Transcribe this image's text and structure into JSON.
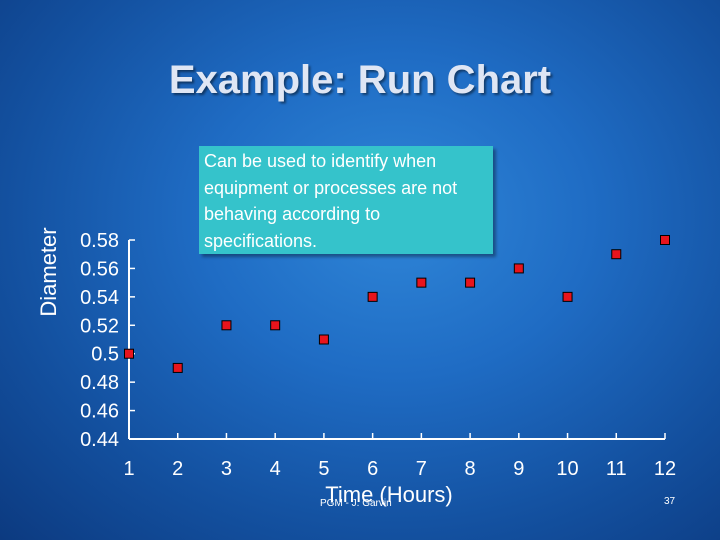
{
  "slide": {
    "title": "Example: Run Chart",
    "callout": "Can be used to identify when equipment or processes are not behaving according to specifications.",
    "footer_left": "PGM - J. Garvin",
    "page_number": "37"
  },
  "colors": {
    "background": "#1f6cc4",
    "callout": "#35c3cb",
    "marker_fill": "#e8141c",
    "marker_stroke": "#000000",
    "axis": "#ffffff"
  },
  "chart_data": {
    "type": "scatter",
    "xlabel": "Time (Hours)",
    "ylabel": "Diameter",
    "x": [
      1,
      2,
      3,
      4,
      5,
      6,
      7,
      8,
      9,
      10,
      11,
      12
    ],
    "y": [
      0.5,
      0.49,
      0.52,
      0.52,
      0.51,
      0.54,
      0.55,
      0.55,
      0.56,
      0.54,
      0.57,
      0.58
    ],
    "x_ticks": [
      1,
      2,
      3,
      4,
      5,
      6,
      7,
      8,
      9,
      10,
      11,
      12
    ],
    "y_ticks": [
      "0.44",
      "0.46",
      "0.48",
      "0.5",
      "0.52",
      "0.54",
      "0.56",
      "0.58"
    ],
    "xlim": [
      1,
      12
    ],
    "ylim": [
      0.44,
      0.58
    ],
    "grid": false,
    "marker": "square"
  }
}
